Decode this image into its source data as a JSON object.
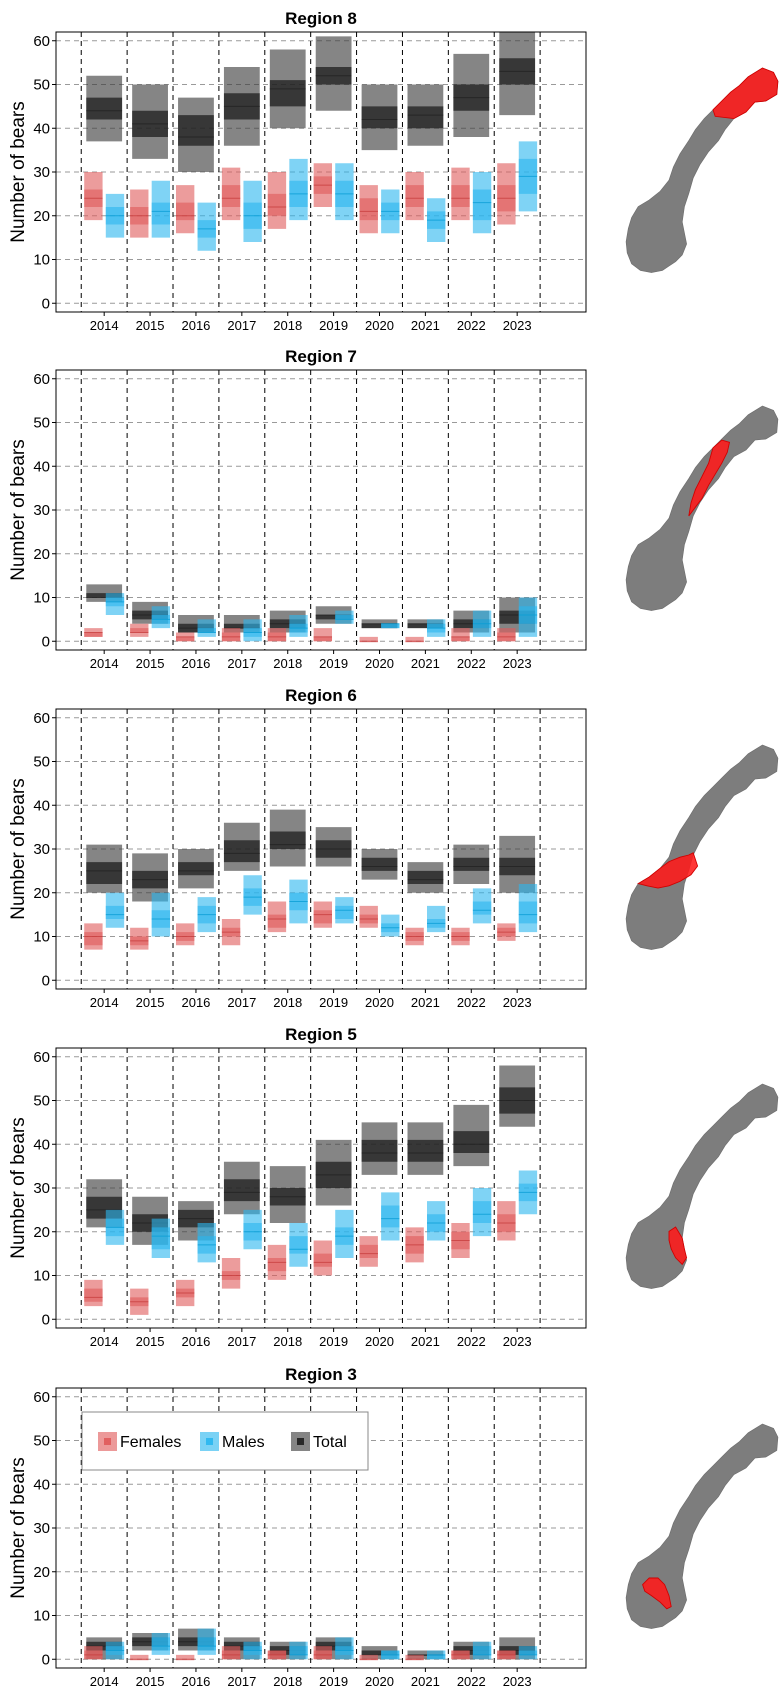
{
  "colors": {
    "females": "#e05a5a",
    "males": "#29b6ef",
    "total": "#3a3a3a",
    "map_land": "#7d7d7d",
    "map_highlight": "#ff1a1a"
  },
  "legend": {
    "panel": "Region 3",
    "placement": "top-left",
    "entries": [
      {
        "label": "Females",
        "series": "Females"
      },
      {
        "label": "Males",
        "series": "Males"
      },
      {
        "label": "Total",
        "series": "Total"
      }
    ]
  },
  "chart_data": [
    {
      "type": "bar",
      "title": "Region 8",
      "ylabel": "Number of bears",
      "ylim": [
        -2,
        62
      ],
      "yticks": [
        0,
        10,
        20,
        30,
        40,
        50,
        60
      ],
      "grid": true,
      "map_highlight": "northern Norway (Finnmark / Troms)",
      "categories": [
        "2014",
        "2015",
        "2016",
        "2017",
        "2018",
        "2019",
        "2020",
        "2021",
        "2022",
        "2023"
      ],
      "series": [
        {
          "name": "Females",
          "outer_low": [
            19,
            15,
            16,
            19,
            17,
            22,
            16,
            19,
            19,
            18
          ],
          "inner_low": [
            22,
            18,
            19,
            22,
            20,
            25,
            19,
            22,
            22,
            21
          ],
          "median": [
            24,
            20,
            20,
            24,
            22,
            27,
            21,
            24,
            24,
            24
          ],
          "inner_high": [
            26,
            22,
            23,
            27,
            25,
            29,
            24,
            27,
            27,
            27
          ],
          "outer_high": [
            30,
            26,
            27,
            31,
            30,
            32,
            27,
            30,
            31,
            32
          ]
        },
        {
          "name": "Males",
          "outer_low": [
            15,
            15,
            12,
            14,
            19,
            19,
            16,
            14,
            16,
            21
          ],
          "inner_low": [
            18,
            18,
            15,
            17,
            22,
            22,
            19,
            17,
            19,
            25
          ],
          "median": [
            20,
            21,
            17,
            20,
            25,
            25,
            21,
            19,
            23,
            29
          ],
          "inner_high": [
            22,
            23,
            19,
            23,
            28,
            28,
            23,
            21,
            26,
            33
          ],
          "outer_high": [
            25,
            28,
            23,
            28,
            33,
            32,
            26,
            24,
            30,
            37
          ]
        },
        {
          "name": "Total",
          "outer_low": [
            37,
            33,
            30,
            36,
            40,
            44,
            35,
            36,
            38,
            43
          ],
          "inner_low": [
            42,
            38,
            36,
            42,
            45,
            50,
            40,
            40,
            44,
            50
          ],
          "median": [
            44,
            41,
            38,
            45,
            49,
            52,
            42,
            43,
            47,
            53
          ],
          "inner_high": [
            47,
            44,
            43,
            48,
            51,
            54,
            45,
            45,
            50,
            56
          ],
          "outer_high": [
            52,
            50,
            47,
            54,
            58,
            61,
            50,
            50,
            57,
            62
          ]
        }
      ]
    },
    {
      "type": "bar",
      "title": "Region 7",
      "ylabel": "Number of bears",
      "ylim": [
        -2,
        62
      ],
      "yticks": [
        0,
        10,
        20,
        30,
        40,
        50,
        60
      ],
      "grid": true,
      "map_highlight": "north-central Norway (Nordland)",
      "categories": [
        "2014",
        "2015",
        "2016",
        "2017",
        "2018",
        "2019",
        "2020",
        "2021",
        "2022",
        "2023"
      ],
      "series": [
        {
          "name": "Females",
          "outer_low": [
            1,
            1,
            0,
            0,
            0,
            0,
            0,
            0,
            0,
            0
          ],
          "inner_low": [
            1,
            2,
            0,
            0,
            0,
            0,
            0,
            0,
            0,
            0
          ],
          "median": [
            2,
            2,
            1,
            1,
            1,
            1,
            0,
            0,
            1,
            1
          ],
          "inner_high": [
            2,
            3,
            1,
            2,
            2,
            1,
            0,
            0,
            1,
            2
          ],
          "outer_high": [
            3,
            4,
            2,
            3,
            3,
            3,
            1,
            1,
            3,
            3
          ]
        },
        {
          "name": "Males",
          "outer_low": [
            6,
            3,
            1,
            0,
            1,
            4,
            3,
            1,
            1,
            1
          ],
          "inner_low": [
            8,
            4,
            2,
            1,
            2,
            5,
            3,
            2,
            3,
            4
          ],
          "median": [
            9,
            5,
            2,
            2,
            3,
            5,
            4,
            3,
            4,
            6
          ],
          "inner_high": [
            10,
            6,
            3,
            3,
            4,
            6,
            4,
            4,
            5,
            8
          ],
          "outer_high": [
            11,
            8,
            5,
            5,
            6,
            7,
            4,
            5,
            7,
            10
          ]
        },
        {
          "name": "Total",
          "outer_low": [
            9,
            4,
            2,
            2,
            2,
            4,
            3,
            3,
            2,
            2
          ],
          "inner_low": [
            10,
            5,
            2,
            3,
            3,
            5,
            3,
            3,
            3,
            4
          ],
          "median": [
            10,
            6,
            3,
            3,
            4,
            6,
            4,
            4,
            4,
            6
          ],
          "inner_high": [
            11,
            7,
            4,
            4,
            5,
            6,
            4,
            4,
            5,
            7
          ],
          "outer_high": [
            13,
            9,
            6,
            6,
            7,
            8,
            5,
            5,
            7,
            10
          ]
        }
      ]
    },
    {
      "type": "bar",
      "title": "Region 6",
      "ylabel": "Number of bears",
      "ylim": [
        -2,
        62
      ],
      "yticks": [
        0,
        10,
        20,
        30,
        40,
        50,
        60
      ],
      "grid": true,
      "map_highlight": "central Norway (Trøndelag)",
      "categories": [
        "2014",
        "2015",
        "2016",
        "2017",
        "2018",
        "2019",
        "2020",
        "2021",
        "2022",
        "2023"
      ],
      "series": [
        {
          "name": "Females",
          "outer_low": [
            7,
            7,
            8,
            8,
            11,
            12,
            12,
            8,
            8,
            9
          ],
          "inner_low": [
            8,
            8,
            9,
            10,
            12,
            13,
            13,
            9,
            9,
            10
          ],
          "median": [
            10,
            9,
            10,
            11,
            14,
            15,
            14,
            10,
            10,
            11
          ],
          "inner_high": [
            11,
            10,
            11,
            12,
            15,
            16,
            15,
            11,
            11,
            12
          ],
          "outer_high": [
            13,
            12,
            13,
            14,
            18,
            18,
            17,
            12,
            12,
            13
          ]
        },
        {
          "name": "Males",
          "outer_low": [
            12,
            10,
            11,
            15,
            13,
            13,
            10,
            11,
            13,
            11
          ],
          "inner_low": [
            14,
            12,
            13,
            17,
            16,
            14,
            11,
            12,
            15,
            13
          ],
          "median": [
            15,
            14,
            15,
            19,
            18,
            16,
            12,
            13,
            16,
            15
          ],
          "inner_high": [
            17,
            16,
            17,
            21,
            20,
            17,
            13,
            14,
            18,
            18
          ],
          "outer_high": [
            20,
            20,
            19,
            24,
            23,
            19,
            15,
            17,
            21,
            22
          ]
        },
        {
          "name": "Total",
          "outer_low": [
            20,
            18,
            21,
            25,
            26,
            26,
            23,
            20,
            22,
            20
          ],
          "inner_low": [
            22,
            21,
            24,
            27,
            30,
            28,
            25,
            22,
            25,
            24
          ],
          "median": [
            25,
            23,
            25,
            29,
            31,
            30,
            26,
            23,
            26,
            26
          ],
          "inner_high": [
            27,
            25,
            27,
            32,
            34,
            32,
            28,
            25,
            28,
            28
          ],
          "outer_high": [
            31,
            29,
            30,
            36,
            39,
            35,
            30,
            27,
            31,
            33
          ]
        }
      ]
    },
    {
      "type": "bar",
      "title": "Region 5",
      "ylabel": "Number of bears",
      "ylim": [
        -2,
        62
      ],
      "yticks": [
        0,
        10,
        20,
        30,
        40,
        50,
        60
      ],
      "grid": true,
      "map_highlight": "south-eastern Norway (Hedmark)",
      "categories": [
        "2014",
        "2015",
        "2016",
        "2017",
        "2018",
        "2019",
        "2020",
        "2021",
        "2022",
        "2023"
      ],
      "series": [
        {
          "name": "Females",
          "outer_low": [
            3,
            1,
            3,
            7,
            9,
            10,
            12,
            13,
            14,
            18
          ],
          "inner_low": [
            4,
            3,
            5,
            9,
            11,
            12,
            14,
            15,
            16,
            20
          ],
          "median": [
            5,
            4,
            6,
            10,
            13,
            13,
            15,
            17,
            18,
            22
          ],
          "inner_high": [
            7,
            5,
            7,
            11,
            14,
            15,
            17,
            19,
            20,
            24
          ],
          "outer_high": [
            9,
            7,
            9,
            14,
            17,
            18,
            19,
            21,
            22,
            27
          ]
        },
        {
          "name": "Males",
          "outer_low": [
            17,
            14,
            13,
            16,
            12,
            14,
            18,
            18,
            19,
            24
          ],
          "inner_low": [
            19,
            16,
            15,
            18,
            15,
            17,
            21,
            20,
            22,
            27
          ],
          "median": [
            21,
            19,
            17,
            20,
            16,
            19,
            23,
            22,
            24,
            29
          ],
          "inner_high": [
            23,
            21,
            19,
            22,
            19,
            21,
            26,
            24,
            27,
            31
          ],
          "outer_high": [
            25,
            23,
            22,
            25,
            22,
            25,
            29,
            27,
            30,
            34
          ]
        },
        {
          "name": "Total",
          "outer_low": [
            21,
            17,
            18,
            24,
            22,
            26,
            33,
            33,
            35,
            44
          ],
          "inner_low": [
            23,
            20,
            21,
            27,
            26,
            30,
            36,
            36,
            38,
            47
          ],
          "median": [
            25,
            22,
            23,
            29,
            28,
            33,
            38,
            38,
            40,
            50
          ],
          "inner_high": [
            28,
            24,
            25,
            32,
            30,
            36,
            41,
            41,
            43,
            53
          ],
          "outer_high": [
            32,
            28,
            27,
            36,
            35,
            41,
            45,
            45,
            49,
            58
          ]
        }
      ]
    },
    {
      "type": "bar",
      "title": "Region 3",
      "ylabel": "Number of bears",
      "ylim": [
        -2,
        62
      ],
      "yticks": [
        0,
        10,
        20,
        30,
        40,
        50,
        60
      ],
      "grid": true,
      "map_highlight": "southern Norway (Oppland / Buskerud)",
      "categories": [
        "2014",
        "2015",
        "2016",
        "2017",
        "2018",
        "2019",
        "2020",
        "2021",
        "2022",
        "2023"
      ],
      "series": [
        {
          "name": "Females",
          "outer_low": [
            0,
            0,
            0,
            0,
            0,
            0,
            0,
            0,
            0,
            0
          ],
          "inner_low": [
            0,
            0,
            0,
            0,
            0,
            0,
            0,
            0,
            0,
            0
          ],
          "median": [
            1,
            0,
            0,
            1,
            1,
            1,
            0,
            0,
            1,
            1
          ],
          "inner_high": [
            2,
            0,
            0,
            2,
            2,
            2,
            0,
            0,
            2,
            2
          ],
          "outer_high": [
            3,
            1,
            1,
            3,
            2,
            3,
            1,
            1,
            2,
            2
          ]
        },
        {
          "name": "Males",
          "outer_low": [
            0,
            1,
            1,
            0,
            0,
            0,
            0,
            0,
            0,
            0
          ],
          "inner_low": [
            1,
            2,
            2,
            1,
            1,
            1,
            0,
            0,
            1,
            1
          ],
          "median": [
            2,
            3,
            3,
            2,
            1,
            2,
            1,
            1,
            1,
            1
          ],
          "inner_high": [
            3,
            5,
            5,
            3,
            3,
            3,
            2,
            1,
            3,
            2
          ],
          "outer_high": [
            4,
            6,
            7,
            4,
            4,
            5,
            2,
            2,
            4,
            3
          ]
        },
        {
          "name": "Total",
          "outer_low": [
            0,
            2,
            2,
            0,
            0,
            0,
            0,
            0,
            0,
            0
          ],
          "inner_low": [
            2,
            3,
            3,
            2,
            1,
            2,
            1,
            1,
            1,
            1
          ],
          "median": [
            3,
            4,
            4,
            3,
            2,
            3,
            1,
            1,
            2,
            2
          ],
          "inner_high": [
            4,
            5,
            5,
            4,
            3,
            4,
            2,
            1,
            3,
            3
          ],
          "outer_high": [
            5,
            6,
            7,
            5,
            4,
            5,
            3,
            2,
            4,
            5
          ]
        }
      ]
    }
  ]
}
